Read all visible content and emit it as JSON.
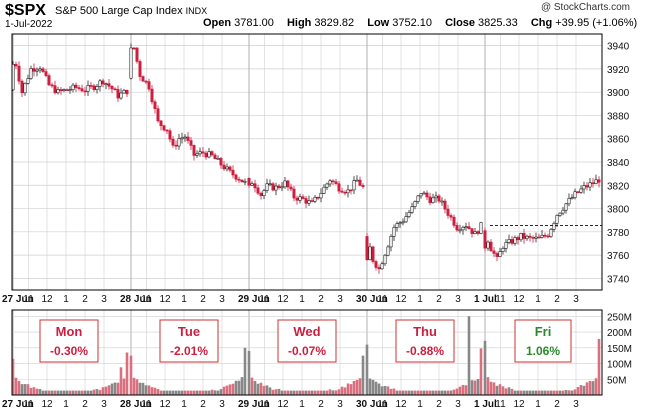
{
  "header": {
    "symbol": "$SPX",
    "description": "S&P 500 Large Cap Index",
    "exchange": "INDX",
    "date": "1-Jul-2022",
    "open_label": "Open",
    "open": "3781.00",
    "high_label": "High",
    "high": "3829.82",
    "low_label": "Low",
    "low": "3752.10",
    "close_label": "Close",
    "close": "3825.33",
    "chg_label": "Chg",
    "chg": "+39.95 (+1.06%)",
    "copyright": "@ StockCharts.com"
  },
  "colors": {
    "up": "#ffffff",
    "down": "#cc1f3f",
    "up_volume": "#888888",
    "down_volume": "#d9707f",
    "grid": "#d0d0d0",
    "reference": "#1a1aa6",
    "positive_text": "#2a8a2a",
    "negative_text": "#cc1f3f"
  },
  "chart_data": [
    {
      "type": "candlestick",
      "interval": "10-minute",
      "ylim": [
        3730,
        3950
      ],
      "y_ticks": [
        3740,
        3760,
        3780,
        3800,
        3820,
        3840,
        3860,
        3880,
        3900,
        3920,
        3940
      ],
      "x_tick_labels": [
        "27 Jun",
        "11",
        "12",
        "1",
        "2",
        "3",
        "28 Jun",
        "11",
        "12",
        "1",
        "2",
        "3",
        "29 Jun",
        "11",
        "12",
        "1",
        "2",
        "3",
        "30 Jun",
        "11",
        "12",
        "1",
        "2",
        "3",
        "1 Jul",
        "11",
        "12",
        "1",
        "2",
        "3"
      ],
      "reference_line": 3785.38,
      "days": [
        {
          "label": "27 Jun",
          "anchors": [
            [
              0,
              3902
            ],
            [
              1,
              3924
            ],
            [
              3,
              3900
            ],
            [
              6,
              3920
            ],
            [
              9,
              3922
            ],
            [
              12,
              3906
            ],
            [
              15,
              3900
            ],
            [
              18,
              3902
            ],
            [
              21,
              3904
            ],
            [
              24,
              3902
            ],
            [
              27,
              3905
            ],
            [
              30,
              3910
            ],
            [
              33,
              3903
            ],
            [
              35,
              3897
            ],
            [
              38,
              3901
            ]
          ]
        },
        {
          "label": "28 Jun",
          "anchors": [
            [
              0,
              3912
            ],
            [
              1,
              3938
            ],
            [
              3,
              3915
            ],
            [
              6,
              3905
            ],
            [
              9,
              3874
            ],
            [
              12,
              3868
            ],
            [
              14,
              3852
            ],
            [
              16,
              3860
            ],
            [
              18,
              3862
            ],
            [
              21,
              3846
            ],
            [
              24,
              3848
            ],
            [
              27,
              3845
            ],
            [
              30,
              3838
            ],
            [
              33,
              3831
            ],
            [
              36,
              3826
            ],
            [
              38,
              3822
            ]
          ]
        },
        {
          "label": "29 Jun",
          "anchors": [
            [
              0,
              3826
            ],
            [
              2,
              3820
            ],
            [
              4,
              3812
            ],
            [
              6,
              3819
            ],
            [
              9,
              3818
            ],
            [
              12,
              3822
            ],
            [
              15,
              3810
            ],
            [
              18,
              3808
            ],
            [
              21,
              3804
            ],
            [
              24,
              3814
            ],
            [
              27,
              3825
            ],
            [
              30,
              3818
            ],
            [
              33,
              3815
            ],
            [
              36,
              3824
            ],
            [
              38,
              3818
            ]
          ]
        },
        {
          "label": "30 Jun",
          "anchors": [
            [
              0,
              3776
            ],
            [
              2,
              3756
            ],
            [
              4,
              3748
            ],
            [
              6,
              3762
            ],
            [
              9,
              3784
            ],
            [
              12,
              3790
            ],
            [
              15,
              3800
            ],
            [
              18,
              3814
            ],
            [
              21,
              3808
            ],
            [
              24,
              3808
            ],
            [
              27,
              3796
            ],
            [
              30,
              3784
            ],
            [
              33,
              3786
            ],
            [
              36,
              3778
            ],
            [
              38,
              3785
            ]
          ]
        },
        {
          "label": "1 Jul",
          "anchors": [
            [
              0,
              3781
            ],
            [
              2,
              3766
            ],
            [
              4,
              3756
            ],
            [
              6,
              3768
            ],
            [
              9,
              3772
            ],
            [
              12,
              3776
            ],
            [
              15,
              3774
            ],
            [
              18,
              3774
            ],
            [
              21,
              3778
            ],
            [
              24,
              3795
            ],
            [
              27,
              3804
            ],
            [
              30,
              3812
            ],
            [
              33,
              3818
            ],
            [
              36,
              3822
            ],
            [
              38,
              3825
            ]
          ]
        }
      ]
    },
    {
      "type": "volume",
      "y_tick_labels": [
        "50M",
        "100M",
        "150M",
        "200M",
        "250M"
      ],
      "y_ticks": [
        50,
        100,
        150,
        200,
        250
      ],
      "ylim": [
        0,
        270
      ],
      "day_summaries": [
        {
          "day": "Mon",
          "change": "-0.30%",
          "positive": false
        },
        {
          "day": "Tue",
          "change": "-2.01%",
          "positive": false
        },
        {
          "day": "Wed",
          "change": "-0.07%",
          "positive": false
        },
        {
          "day": "Thu",
          "change": "-0.88%",
          "positive": false
        },
        {
          "day": "Fri",
          "change": "1.06%",
          "positive": true
        }
      ],
      "first_bar_volume": [
        115,
        125,
        140,
        160,
        172
      ],
      "last_bar_volume": [
        135,
        150,
        125,
        148,
        178
      ],
      "spike_volume": [
        [
          [
            36,
            88
          ]
        ],
        [],
        [],
        [
          [
            34,
            250
          ]
        ],
        []
      ]
    }
  ]
}
